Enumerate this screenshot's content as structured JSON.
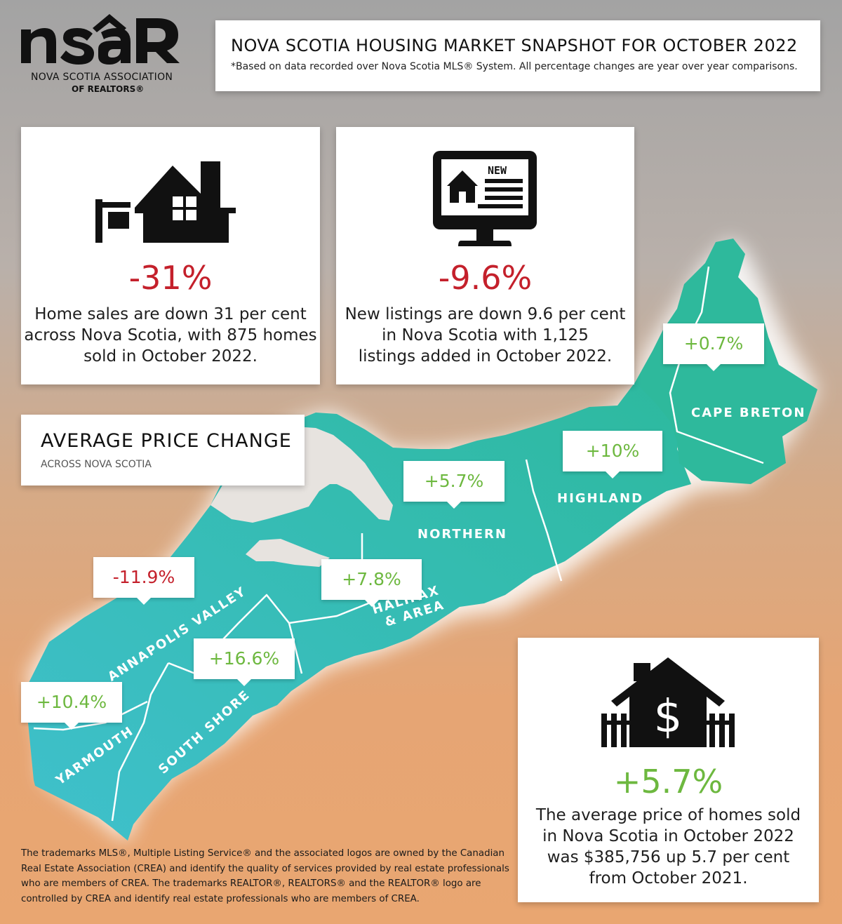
{
  "logo": {
    "wordmark": "nsar",
    "line1": "NOVA SCOTIA ASSOCIATION",
    "line2": "OF REALTORS®"
  },
  "header": {
    "title": "NOVA SCOTIA HOUSING MARKET SNAPSHOT FOR OCTOBER 2022",
    "subtitle": "*Based on data recorded over Nova Scotia MLS® System. All percentage changes are year over year comparisons."
  },
  "sales_card": {
    "icon": "house-for-sale-icon",
    "stat": "-31%",
    "text_lines": [
      "Home sales are down 31 per cent",
      "across Nova Scotia, with 875 homes",
      "sold in October 2022."
    ]
  },
  "listings_card": {
    "icon": "monitor-new-listing-icon",
    "badge": "NEW",
    "stat": "-9.6%",
    "text_lines": [
      "New listings are down 9.6 per cent",
      "in Nova Scotia with 1,125",
      "listings added in October 2022."
    ]
  },
  "avg_card": {
    "title": "AVERAGE PRICE CHANGE",
    "subtitle": "ACROSS NOVA SCOTIA"
  },
  "regions": {
    "cape_breton": {
      "name": "CAPE BRETON",
      "change": "+0.7%"
    },
    "highland": {
      "name": "HIGHLAND",
      "change": "+10%"
    },
    "northern": {
      "name": "NORTHERN",
      "change": "+5.7%"
    },
    "halifax": {
      "name1": "HALIFAX",
      "name2": "& AREA",
      "change": "+7.8%"
    },
    "annapolis": {
      "name": "ANNAPOLIS VALLEY",
      "change": "-11.9%"
    },
    "south_shore": {
      "name": "SOUTH SHORE",
      "change": "+16.6%"
    },
    "yarmouth": {
      "name": "YARMOUTH",
      "change": "+10.4%"
    }
  },
  "price_card": {
    "icon": "house-dollar-icon",
    "stat": "+5.7%",
    "text_lines": [
      "The average price of homes sold",
      "in Nova Scotia in October 2022",
      "was $385,756 up 5.7 per cent",
      "from October 2021."
    ]
  },
  "footer": {
    "lines": [
      "The trademarks MLS®, Multiple Listing Service® and the associated logos are owned by the Canadian",
      "Real Estate Association (CREA) and identify the quality of services provided by real estate professionals",
      "who are members of CREA. The trademarks REALTOR®, REALTORS® and the REALTOR® logo are",
      "controlled by CREA and identify real estate professionals who are members of CREA."
    ]
  },
  "colors": {
    "map_teal": "#33bbb7",
    "negative": "#c4202b",
    "positive": "#6db83f"
  }
}
